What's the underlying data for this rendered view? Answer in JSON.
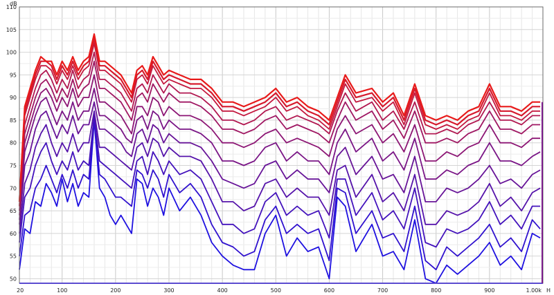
{
  "chart_data": {
    "type": "line",
    "xlabel": "",
    "ylabel": "",
    "y_unit": "dB",
    "x_unit": "H",
    "xlim": [
      20,
      1000
    ],
    "ylim": [
      49,
      110
    ],
    "x_scale": "linear",
    "grid": true,
    "legend": "none",
    "x_ticks": [
      {
        "value": 20,
        "label": "20"
      },
      {
        "value": 100,
        "label": "100"
      },
      {
        "value": 200,
        "label": "200"
      },
      {
        "value": 300,
        "label": "300"
      },
      {
        "value": 400,
        "label": "400"
      },
      {
        "value": 500,
        "label": "500"
      },
      {
        "value": 600,
        "label": "600"
      },
      {
        "value": 700,
        "label": "700"
      },
      {
        "value": 800,
        "label": "800"
      },
      {
        "value": 900,
        "label": "900"
      },
      {
        "value": 1000,
        "label": "1.00k"
      }
    ],
    "y_ticks": [
      50,
      55,
      60,
      65,
      70,
      75,
      80,
      85,
      90,
      95,
      100,
      105,
      110
    ],
    "colors": {
      "first_series": "#1e10e0",
      "last_series": "#e81a1a",
      "grid": "#d4d4d4",
      "axis": "#6a6a6a"
    },
    "x": [
      20,
      30,
      40,
      50,
      60,
      70,
      80,
      90,
      100,
      110,
      120,
      130,
      140,
      150,
      160,
      170,
      180,
      190,
      200,
      210,
      220,
      230,
      240,
      250,
      260,
      270,
      280,
      290,
      300,
      320,
      340,
      360,
      380,
      400,
      420,
      440,
      460,
      480,
      500,
      520,
      540,
      560,
      580,
      600,
      615,
      630,
      650,
      680,
      700,
      720,
      740,
      760,
      780,
      800,
      820,
      840,
      860,
      880,
      900,
      920,
      940,
      960,
      980,
      995
    ],
    "series": [
      {
        "values": [
          52,
          61,
          60,
          67,
          66,
          71,
          69,
          66,
          72,
          67,
          71,
          66,
          69,
          68,
          85,
          70,
          68,
          64,
          62,
          64,
          62,
          60,
          72,
          71,
          66,
          70,
          68,
          64,
          70,
          65,
          68,
          64,
          58,
          55,
          53,
          52,
          52,
          60,
          64,
          55,
          59,
          56,
          57,
          50,
          68,
          66,
          56,
          62,
          55,
          56,
          52,
          63,
          50,
          49,
          53,
          51,
          53,
          55,
          58,
          53,
          55,
          52,
          60,
          59
        ]
      },
      {
        "values": [
          55,
          64,
          65,
          70,
          72,
          75,
          72,
          69,
          73,
          70,
          74,
          70,
          73,
          72,
          85,
          73,
          72,
          70,
          68,
          68,
          67,
          66,
          74,
          73,
          70,
          74,
          72,
          68,
          73,
          69,
          71,
          68,
          62,
          58,
          57,
          55,
          56,
          63,
          66,
          60,
          62,
          60,
          61,
          54,
          70,
          69,
          60,
          65,
          59,
          60,
          56,
          66,
          54,
          52,
          57,
          55,
          57,
          59,
          62,
          57,
          59,
          56,
          63,
          61
        ]
      },
      {
        "values": [
          58,
          68,
          70,
          75,
          78,
          80,
          76,
          73,
          76,
          74,
          78,
          74,
          76,
          75,
          86,
          76,
          75,
          74,
          73,
          72,
          71,
          70,
          76,
          77,
          73,
          78,
          76,
          73,
          76,
          73,
          74,
          72,
          67,
          62,
          62,
          60,
          61,
          67,
          69,
          64,
          66,
          64,
          65,
          59,
          72,
          72,
          64,
          69,
          63,
          65,
          61,
          70,
          58,
          57,
          61,
          60,
          61,
          63,
          67,
          62,
          64,
          61,
          66,
          66
        ]
      },
      {
        "values": [
          60,
          71,
          74,
          79,
          82,
          84,
          80,
          77,
          80,
          78,
          82,
          78,
          80,
          80,
          87,
          79,
          79,
          78,
          77,
          76,
          75,
          74,
          79,
          80,
          77,
          81,
          80,
          77,
          79,
          77,
          77,
          76,
          72,
          67,
          67,
          65,
          66,
          71,
          72,
          68,
          70,
          68,
          68,
          64,
          74,
          75,
          68,
          73,
          67,
          69,
          65,
          73,
          62,
          62,
          65,
          64,
          65,
          67,
          71,
          66,
          68,
          65,
          69,
          70
        ]
      },
      {
        "values": [
          62,
          75,
          78,
          83,
          86,
          87,
          84,
          81,
          84,
          82,
          86,
          82,
          84,
          84,
          89,
          83,
          83,
          82,
          81,
          80,
          78,
          77,
          82,
          83,
          80,
          84,
          83,
          80,
          82,
          80,
          80,
          79,
          76,
          72,
          71,
          70,
          71,
          75,
          76,
          72,
          74,
          72,
          72,
          69,
          77,
          79,
          73,
          77,
          72,
          73,
          69,
          77,
          67,
          67,
          70,
          69,
          70,
          72,
          75,
          71,
          72,
          70,
          73,
          74
        ]
      },
      {
        "values": [
          63,
          78,
          82,
          86,
          89,
          90,
          87,
          84,
          87,
          85,
          89,
          85,
          87,
          87,
          92,
          86,
          86,
          85,
          84,
          83,
          81,
          80,
          85,
          86,
          83,
          87,
          86,
          83,
          85,
          83,
          83,
          82,
          80,
          76,
          76,
          75,
          76,
          79,
          80,
          76,
          78,
          76,
          76,
          73,
          80,
          83,
          78,
          81,
          76,
          78,
          74,
          81,
          72,
          72,
          74,
          73,
          75,
          76,
          80,
          76,
          76,
          75,
          77,
          78
        ]
      },
      {
        "values": [
          64,
          80,
          84,
          88,
          91,
          92,
          90,
          87,
          90,
          88,
          92,
          88,
          90,
          90,
          95,
          89,
          89,
          88,
          87,
          86,
          84,
          82,
          88,
          88,
          86,
          90,
          89,
          86,
          88,
          86,
          86,
          85,
          83,
          80,
          80,
          79,
          80,
          82,
          83,
          80,
          81,
          80,
          79,
          77,
          83,
          86,
          82,
          84,
          80,
          82,
          78,
          84,
          76,
          76,
          78,
          77,
          79,
          80,
          84,
          80,
          80,
          79,
          81,
          81
        ]
      },
      {
        "values": [
          65,
          82,
          86,
          90,
          93,
          94,
          92,
          89,
          92,
          90,
          94,
          90,
          92,
          93,
          98,
          92,
          92,
          91,
          90,
          89,
          87,
          85,
          90,
          91,
          89,
          93,
          91,
          89,
          91,
          89,
          89,
          88,
          86,
          83,
          83,
          82,
          83,
          85,
          86,
          83,
          84,
          83,
          82,
          80,
          85,
          89,
          85,
          87,
          83,
          85,
          81,
          87,
          80,
          80,
          81,
          80,
          82,
          83,
          87,
          83,
          83,
          82,
          84,
          84
        ]
      },
      {
        "values": [
          66,
          84,
          88,
          92,
          95,
          96,
          94,
          91,
          94,
          92,
          96,
          92,
          94,
          95,
          100,
          94,
          94,
          93,
          92,
          91,
          89,
          87,
          92,
          93,
          91,
          95,
          93,
          91,
          93,
          91,
          91,
          90,
          88,
          85,
          85,
          84,
          85,
          87,
          88,
          85,
          86,
          85,
          84,
          82,
          87,
          91,
          87,
          89,
          85,
          87,
          83,
          89,
          82,
          82,
          83,
          82,
          84,
          85,
          89,
          85,
          85,
          84,
          86,
          86
        ]
      },
      {
        "values": [
          66,
          86,
          90,
          94,
          97,
          97,
          96,
          93,
          96,
          94,
          97,
          94,
          96,
          97,
          102,
          96,
          96,
          95,
          94,
          93,
          91,
          89,
          94,
          95,
          93,
          97,
          95,
          93,
          94,
          93,
          92,
          92,
          90,
          87,
          87,
          86,
          87,
          88,
          90,
          87,
          88,
          86,
          85,
          83,
          88,
          93,
          89,
          90,
          87,
          89,
          84,
          91,
          84,
          83,
          84,
          83,
          85,
          86,
          91,
          86,
          86,
          85,
          87,
          87
        ]
      },
      {
        "values": [
          67,
          87,
          91,
          95,
          98,
          98,
          97,
          94,
          97,
          95,
          98,
          95,
          97,
          98,
          103,
          97,
          97,
          96,
          95,
          94,
          92,
          90,
          95,
          96,
          94,
          98,
          96,
          94,
          95,
          94,
          93,
          93,
          91,
          88,
          88,
          87,
          88,
          89,
          91,
          88,
          89,
          87,
          86,
          84,
          89,
          94,
          90,
          91,
          88,
          90,
          85,
          92,
          85,
          84,
          85,
          84,
          86,
          87,
          92,
          87,
          87,
          86,
          88,
          88
        ]
      },
      {
        "values": [
          67,
          88,
          92,
          96,
          99,
          98,
          98,
          95,
          98,
          96,
          99,
          96,
          98,
          99,
          104,
          98,
          98,
          97,
          96,
          95,
          93,
          91,
          96,
          97,
          95,
          99,
          97,
          95,
          96,
          95,
          94,
          94,
          92,
          89,
          89,
          88,
          89,
          90,
          92,
          89,
          90,
          88,
          87,
          85,
          90,
          95,
          91,
          92,
          89,
          91,
          86,
          93,
          86,
          85,
          86,
          85,
          87,
          88,
          93,
          88,
          88,
          87,
          89,
          89
        ]
      }
    ]
  }
}
